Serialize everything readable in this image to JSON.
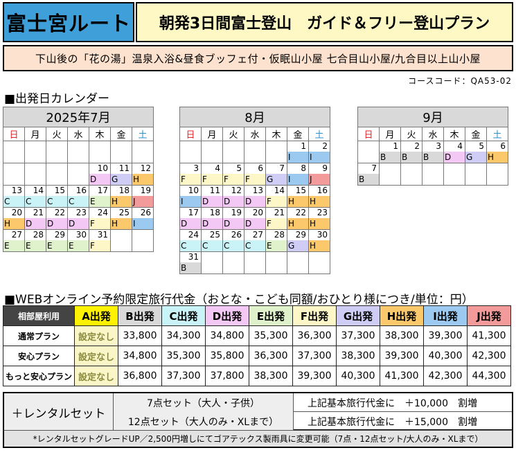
{
  "header": {
    "route": "富士宮ルート",
    "plan": "朝発3日間富士登山　ガイド＆フリー登山プラン",
    "subtitle": "下山後の「花の湯」温泉入浴&昼食ブッフェ付・仮眠山小屋 七合目山小屋/九合目以上山小屋",
    "course_code": "コースコード：QA53-02"
  },
  "calendar_heading": "■出発日カレンダー",
  "weekdays": [
    "日",
    "月",
    "火",
    "水",
    "木",
    "金",
    "土"
  ],
  "code_colors": {
    "B": "#d9d9d9",
    "C": "#c9f3f7",
    "D": "#f4c8f4",
    "E": "#dff2cb",
    "F": "#fdf6c6",
    "G": "#cfcdf6",
    "H": "#fbc96c",
    "I": "#9cc9ef",
    "J": "#f39a9a"
  },
  "calendars": [
    {
      "title": "2025年7月",
      "start": 2,
      "days": 31,
      "codes": {
        "10": "D",
        "11": "G",
        "12": "H",
        "13": "C",
        "14": "C",
        "15": "C",
        "16": "C",
        "17": "E",
        "18": "H",
        "19": "J",
        "20": "H",
        "21": "D",
        "22": "D",
        "23": "D",
        "24": "F",
        "25": "H",
        "26": "I",
        "27": "E",
        "28": "E",
        "29": "E",
        "30": "E",
        "31": "F"
      },
      "show_from": 10
    },
    {
      "title": "8月",
      "start": 5,
      "days": 31,
      "codes": {
        "1": "I",
        "2": "I",
        "3": "F",
        "4": "F",
        "5": "F",
        "6": "F",
        "7": "G",
        "8": "I",
        "9": "J",
        "10": "I",
        "11": "D",
        "12": "D",
        "13": "D",
        "14": "F",
        "15": "H",
        "16": "H",
        "17": "D",
        "18": "D",
        "19": "D",
        "20": "D",
        "21": "F",
        "22": "H",
        "23": "H",
        "24": "C",
        "25": "C",
        "26": "C",
        "27": "C",
        "28": "E",
        "29": "G",
        "30": "H",
        "31": "B"
      },
      "show_from": 1
    },
    {
      "title": "9月",
      "start": 1,
      "days": 7,
      "codes": {
        "1": "B",
        "2": "B",
        "3": "B",
        "4": "D",
        "5": "G",
        "6": "H",
        "7": "B"
      },
      "show_from": 1
    }
  ],
  "price_heading": "■WEBオンライン予約限定旅行代金（おとな・こども同額/おひとり様につき/単位：円）",
  "price": {
    "corner": "相部屋利用",
    "columns": [
      {
        "label": "A出発",
        "bg": "#fff200"
      },
      {
        "label": "B出発",
        "bg": "#d9d9d9"
      },
      {
        "label": "C出発",
        "bg": "#c9f3f7"
      },
      {
        "label": "D出発",
        "bg": "#f4c8f4"
      },
      {
        "label": "E出発",
        "bg": "#dff2cb"
      },
      {
        "label": "F出発",
        "bg": "#fdf6c6"
      },
      {
        "label": "G出発",
        "bg": "#cfcdf6"
      },
      {
        "label": "H出発",
        "bg": "#fbc96c"
      },
      {
        "label": "I出発",
        "bg": "#9cc9ef"
      },
      {
        "label": "J出発",
        "bg": "#f39a9a"
      }
    ],
    "rows": [
      {
        "label": "通常プラン",
        "values": [
          "設定なし",
          "33,800",
          "34,300",
          "34,800",
          "35,300",
          "36,300",
          "37,300",
          "38,300",
          "39,300",
          "41,300"
        ]
      },
      {
        "label": "安心プラン",
        "values": [
          "設定なし",
          "34,800",
          "35,300",
          "35,800",
          "36,300",
          "37,300",
          "38,300",
          "39,300",
          "40,300",
          "42,300"
        ]
      },
      {
        "label": "もっと安心プラン",
        "values": [
          "設定なし",
          "36,800",
          "37,300",
          "37,800",
          "38,300",
          "39,300",
          "40,300",
          "41,300",
          "42,300",
          "44,300"
        ]
      }
    ]
  },
  "rental": {
    "label": "＋レンタルセット",
    "rows": [
      {
        "set": "7点セット（大人・子供）",
        "price": "上記基本旅行代金に　＋10,000　割増"
      },
      {
        "set": "12点セット（大人のみ・XLまで）",
        "price": "上記基本旅行代金に　＋15,000　割増"
      }
    ],
    "note": "*レンタルセットグレードUP／2,500円増しにてゴアテックス製雨具に変更可能（7点・12点セット/大人のみ・XLまで）"
  }
}
